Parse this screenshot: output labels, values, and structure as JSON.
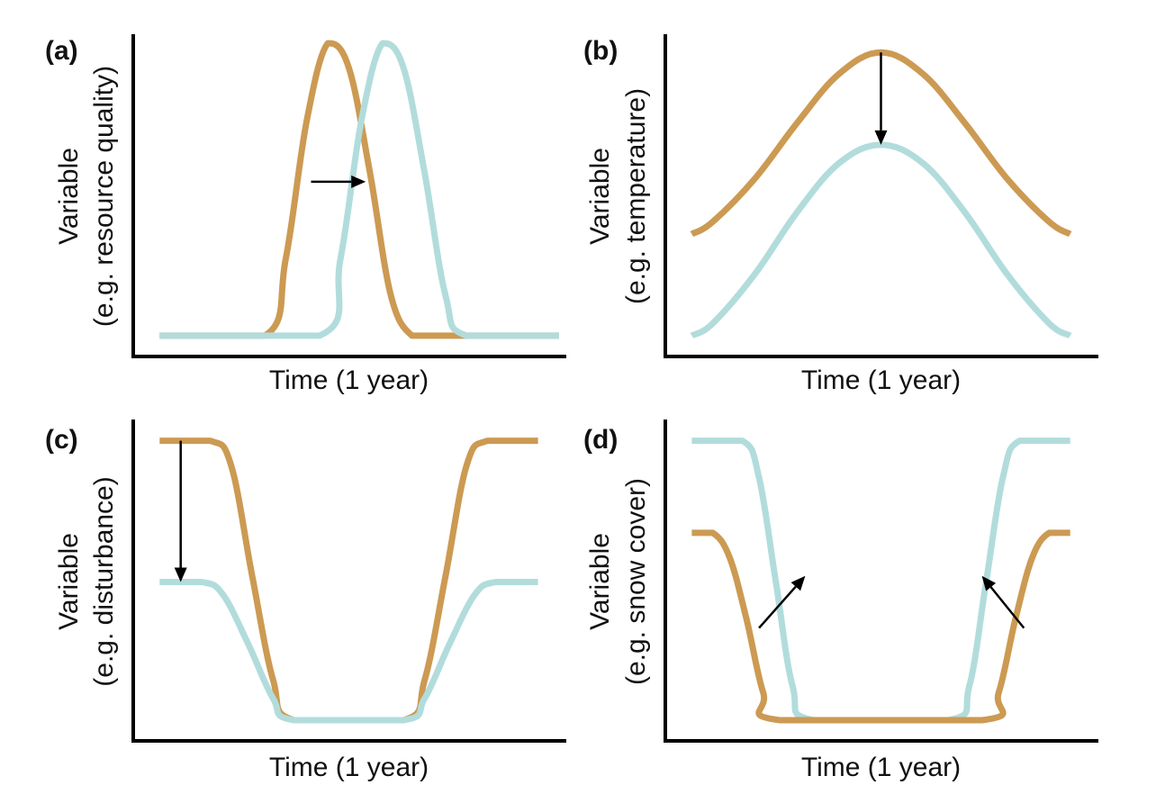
{
  "colors": {
    "series_a": "#cc9a52",
    "series_b": "#b2dcdc",
    "axis": "#000000"
  },
  "chart_data": [
    {
      "type": "line",
      "panel_label": "(a)",
      "xlabel": "Time (1 year)",
      "ylabel_lines": [
        "Variable",
        "(e.g. resource quality)"
      ],
      "xlim": [
        0,
        1
      ],
      "ylim": [
        0,
        1
      ],
      "series": [
        {
          "color": "#cc9a52",
          "x": [
            0.05,
            0.3,
            0.35,
            0.4,
            0.45,
            0.5,
            0.55,
            0.6,
            0.65,
            0.7,
            1.0
          ],
          "y": [
            0.05,
            0.05,
            0.3,
            0.75,
            1.0,
            0.92,
            0.58,
            0.18,
            0.05,
            0.05,
            0.05
          ]
        },
        {
          "color": "#b2dcdc",
          "x": [
            0.05,
            0.43,
            0.48,
            0.53,
            0.58,
            0.63,
            0.68,
            0.73,
            0.78,
            1.0
          ],
          "y": [
            0.05,
            0.05,
            0.3,
            0.75,
            1.0,
            0.92,
            0.58,
            0.18,
            0.05,
            0.05
          ]
        }
      ],
      "annotations": [
        {
          "type": "arrow",
          "from": [
            0.41,
            0.55
          ],
          "to": [
            0.54,
            0.55
          ]
        }
      ]
    },
    {
      "type": "line",
      "panel_label": "(b)",
      "xlabel": "Time (1 year)",
      "ylabel_lines": [
        "Variable",
        "(e.g. temperature)"
      ],
      "xlim": [
        0,
        1
      ],
      "ylim": [
        0,
        1
      ],
      "series": [
        {
          "color": "#cc9a52",
          "x": [
            0.05,
            0.1,
            0.2,
            0.3,
            0.4,
            0.5,
            0.6,
            0.7,
            0.8,
            0.9,
            0.95
          ],
          "y": [
            0.38,
            0.42,
            0.56,
            0.74,
            0.9,
            0.97,
            0.9,
            0.74,
            0.56,
            0.42,
            0.38
          ]
        },
        {
          "color": "#b2dcdc",
          "x": [
            0.05,
            0.1,
            0.2,
            0.3,
            0.4,
            0.5,
            0.6,
            0.7,
            0.8,
            0.9,
            0.95
          ],
          "y": [
            0.05,
            0.09,
            0.25,
            0.45,
            0.61,
            0.67,
            0.61,
            0.45,
            0.25,
            0.09,
            0.05
          ]
        }
      ],
      "annotations": [
        {
          "type": "arrow",
          "from": [
            0.5,
            0.97
          ],
          "to": [
            0.5,
            0.67
          ]
        }
      ]
    },
    {
      "type": "line",
      "panel_label": "(c)",
      "xlabel": "Time (1 year)",
      "ylabel_lines": [
        "Variable",
        "(e.g. disturbance)"
      ],
      "xlim": [
        0,
        1
      ],
      "ylim": [
        0,
        1
      ],
      "series": [
        {
          "color": "#cc9a52",
          "x": [
            0.05,
            0.17,
            0.22,
            0.27,
            0.32,
            0.37,
            0.63,
            0.68,
            0.73,
            0.78,
            0.83,
            0.95
          ],
          "y": [
            0.96,
            0.96,
            0.88,
            0.52,
            0.18,
            0.05,
            0.05,
            0.18,
            0.52,
            0.88,
            0.96,
            0.96
          ]
        },
        {
          "color": "#b2dcdc",
          "x": [
            0.05,
            0.15,
            0.2,
            0.26,
            0.32,
            0.37,
            0.63,
            0.68,
            0.74,
            0.8,
            0.85,
            0.95
          ],
          "y": [
            0.5,
            0.5,
            0.46,
            0.3,
            0.12,
            0.05,
            0.05,
            0.12,
            0.3,
            0.46,
            0.5,
            0.5
          ]
        }
      ],
      "annotations": [
        {
          "type": "arrow",
          "from": [
            0.1,
            0.96
          ],
          "to": [
            0.1,
            0.5
          ]
        }
      ]
    },
    {
      "type": "line",
      "panel_label": "(d)",
      "xlabel": "Time (1 year)",
      "ylabel_lines": [
        "Variable",
        "(e.g. snow cover)"
      ],
      "xlim": [
        0,
        1
      ],
      "ylim": [
        0,
        1
      ],
      "series": [
        {
          "color": "#b2dcdc",
          "x": [
            0.05,
            0.17,
            0.21,
            0.25,
            0.29,
            0.34,
            0.66,
            0.71,
            0.75,
            0.79,
            0.83,
            0.95
          ],
          "y": [
            0.96,
            0.96,
            0.84,
            0.5,
            0.16,
            0.05,
            0.05,
            0.16,
            0.5,
            0.84,
            0.96,
            0.96
          ]
        },
        {
          "color": "#cc9a52",
          "x": [
            0.05,
            0.1,
            0.14,
            0.18,
            0.22,
            0.26,
            0.74,
            0.78,
            0.82,
            0.86,
            0.9,
            0.95
          ],
          "y": [
            0.66,
            0.66,
            0.58,
            0.38,
            0.14,
            0.05,
            0.05,
            0.14,
            0.38,
            0.58,
            0.66,
            0.66
          ]
        }
      ],
      "annotations": [
        {
          "type": "arrow",
          "from": [
            0.21,
            0.35
          ],
          "to": [
            0.32,
            0.52
          ]
        },
        {
          "type": "arrow",
          "from": [
            0.84,
            0.35
          ],
          "to": [
            0.74,
            0.52
          ]
        }
      ]
    }
  ]
}
